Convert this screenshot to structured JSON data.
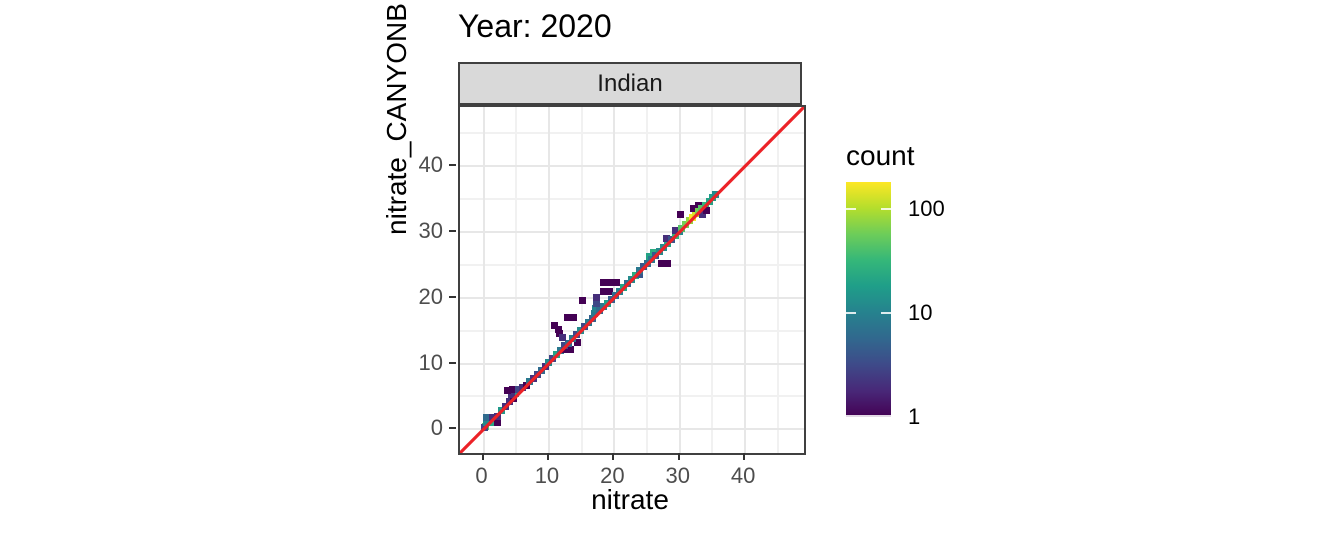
{
  "chart": {
    "title": "Year: 2020",
    "facet_label": "Indian",
    "xlabel": "nitrate",
    "ylabel": "nitrate_CANYONB",
    "legend_title": "count",
    "colors": {
      "strip_bg": "#D9D9D9",
      "panel_border": "#404040",
      "grid_major": "#E7E7E7",
      "grid_minor": "#F1F1F1",
      "tick_label": "#4D4D4D",
      "tick_mark": "#333333",
      "abline": "#EC2227"
    }
  },
  "chart_data": {
    "type": "heatmap",
    "subtype": "bin2d",
    "title": "Year: 2020",
    "facet": "Indian",
    "xlabel": "nitrate",
    "ylabel": "nitrate_CANYONB",
    "x_domain": [
      -3.6,
      49.0
    ],
    "y_domain": [
      -3.6,
      49.0
    ],
    "x_ticks": [
      0,
      10,
      20,
      30,
      40
    ],
    "y_ticks": [
      0,
      10,
      20,
      30,
      40
    ],
    "minor_ticks": [
      5,
      15,
      25,
      35,
      45
    ],
    "grid": true,
    "abline": {
      "slope": 1,
      "intercept": 0,
      "color": "#EC2227"
    },
    "legend": {
      "title": "count",
      "position": "right",
      "scale": "log10",
      "domain": [
        1,
        180
      ],
      "tick_values": [
        100,
        10,
        1
      ],
      "tick_labels": [
        "100",
        "10",
        "1"
      ]
    },
    "viridis_palette": [
      "#440154",
      "#482878",
      "#3E4A89",
      "#31688E",
      "#26828E",
      "#1F9E89",
      "#35B779",
      "#6DCD59",
      "#B4DE2C",
      "#FDE725"
    ],
    "binwidth": 1.05,
    "bins": [
      [
        0.3,
        0.4,
        45
      ],
      [
        0.2,
        0.3,
        3
      ],
      [
        0.5,
        1.0,
        12
      ],
      [
        1.3,
        1.0,
        22
      ],
      [
        0.5,
        1.8,
        6
      ],
      [
        1.3,
        1.8,
        2
      ],
      [
        2.2,
        1.1,
        1
      ],
      [
        2.1,
        1.9,
        2
      ],
      [
        2.8,
        2.9,
        16
      ],
      [
        3.4,
        3.5,
        2
      ],
      [
        4.0,
        4.2,
        2
      ],
      [
        4.6,
        4.7,
        1
      ],
      [
        4.9,
        5.5,
        18
      ],
      [
        4.2,
        5.3,
        2
      ],
      [
        3.6,
        5.9,
        1
      ],
      [
        4.5,
        6.0,
        1
      ],
      [
        5.3,
        6.1,
        3
      ],
      [
        5.9,
        6.4,
        2
      ],
      [
        6.5,
        6.6,
        1
      ],
      [
        7.0,
        7.2,
        8
      ],
      [
        7.6,
        7.7,
        2
      ],
      [
        8.2,
        8.4,
        3
      ],
      [
        8.8,
        9.0,
        6
      ],
      [
        9.4,
        9.6,
        2
      ],
      [
        10.0,
        10.2,
        12
      ],
      [
        10.6,
        10.8,
        3
      ],
      [
        11.2,
        11.4,
        20
      ],
      [
        11.8,
        12.0,
        8
      ],
      [
        12.4,
        12.1,
        1
      ],
      [
        13.3,
        12.2,
        1
      ],
      [
        12.4,
        12.8,
        3
      ],
      [
        13.0,
        13.1,
        6
      ],
      [
        14.4,
        13.2,
        1
      ],
      [
        13.6,
        13.8,
        8
      ],
      [
        14.2,
        14.4,
        3
      ],
      [
        14.8,
        15.0,
        12
      ],
      [
        15.4,
        15.6,
        3
      ],
      [
        16.0,
        16.2,
        8
      ],
      [
        10.8,
        15.8,
        1
      ],
      [
        11.6,
        14.6,
        1
      ],
      [
        12.0,
        13.9,
        2
      ],
      [
        12.8,
        17.0,
        1
      ],
      [
        13.8,
        17.0,
        1
      ],
      [
        11.4,
        15.1,
        1
      ],
      [
        15.2,
        19.6,
        1
      ],
      [
        16.6,
        16.8,
        5
      ],
      [
        17.0,
        17.6,
        8
      ],
      [
        17.1,
        18.4,
        10
      ],
      [
        17.2,
        19.2,
        3
      ],
      [
        17.3,
        20.0,
        2
      ],
      [
        17.7,
        18.0,
        5
      ],
      [
        17.8,
        18.1,
        6
      ],
      [
        18.4,
        18.6,
        8
      ],
      [
        19.0,
        19.2,
        18
      ],
      [
        19.6,
        19.8,
        5
      ],
      [
        18.3,
        20.9,
        1
      ],
      [
        19.2,
        20.9,
        1
      ],
      [
        18.3,
        22.3,
        1
      ],
      [
        19.3,
        22.3,
        1
      ],
      [
        20.3,
        22.3,
        1
      ],
      [
        20.2,
        20.4,
        6
      ],
      [
        20.8,
        21.0,
        10
      ],
      [
        21.4,
        21.6,
        20
      ],
      [
        22.0,
        22.2,
        6
      ],
      [
        22.6,
        22.8,
        12
      ],
      [
        23.2,
        23.4,
        25
      ],
      [
        23.8,
        23.6,
        4
      ],
      [
        23.9,
        24.2,
        8
      ],
      [
        24.5,
        24.7,
        4
      ],
      [
        25.0,
        25.2,
        6
      ],
      [
        25.4,
        26.2,
        20
      ],
      [
        26.0,
        26.9,
        25
      ],
      [
        25.7,
        25.8,
        8
      ],
      [
        26.3,
        26.4,
        4
      ],
      [
        26.9,
        27.1,
        12
      ],
      [
        27.2,
        25.2,
        1
      ],
      [
        28.1,
        25.2,
        1
      ],
      [
        27.5,
        27.7,
        12
      ],
      [
        28.1,
        28.3,
        20
      ],
      [
        28.0,
        29.0,
        2
      ],
      [
        28.7,
        28.9,
        4
      ],
      [
        29.3,
        29.5,
        30
      ],
      [
        29.9,
        30.1,
        12
      ],
      [
        29.4,
        30.3,
        2
      ],
      [
        30.3,
        30.5,
        45
      ],
      [
        30.9,
        31.1,
        60
      ],
      [
        30.1,
        32.6,
        1
      ],
      [
        31.5,
        31.7,
        80
      ],
      [
        31.9,
        32.2,
        170
      ],
      [
        32.4,
        32.8,
        130
      ],
      [
        32.1,
        33.5,
        1
      ],
      [
        32.9,
        34.1,
        1
      ],
      [
        32.9,
        33.1,
        60
      ],
      [
        33.4,
        33.6,
        45
      ],
      [
        33.9,
        34.1,
        30
      ],
      [
        34.5,
        34.7,
        20
      ],
      [
        35.0,
        35.2,
        18
      ],
      [
        35.5,
        35.7,
        12
      ],
      [
        33.5,
        32.7,
        2
      ],
      [
        34.1,
        33.3,
        1
      ]
    ]
  }
}
